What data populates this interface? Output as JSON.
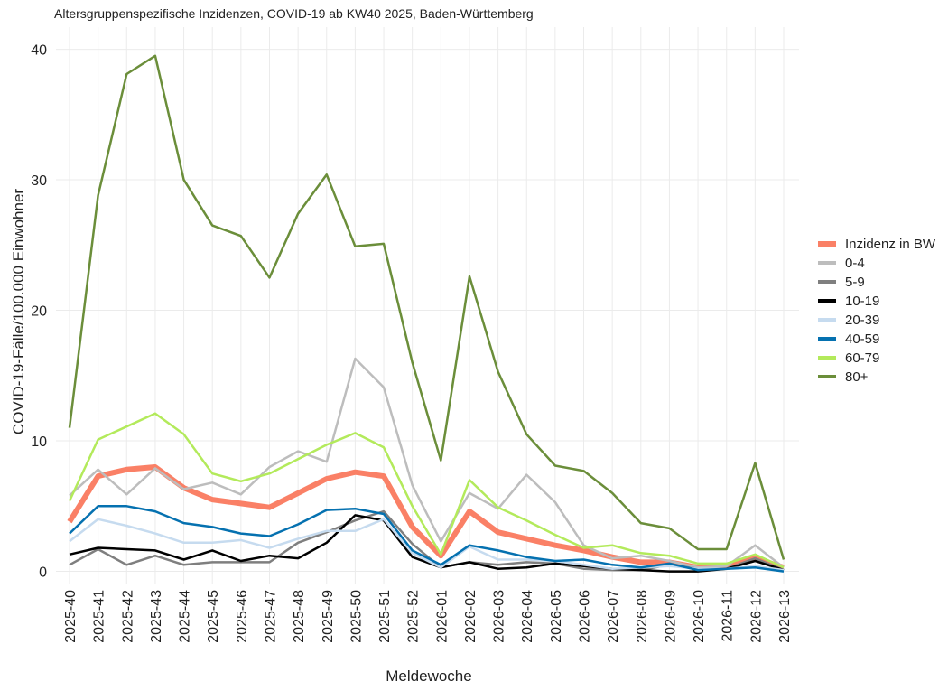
{
  "chart_data": {
    "type": "line",
    "title": "Altersgruppenspezifische Inzidenzen, COVID-19 ab KW40 2025, Baden-Württemberg",
    "x_label": "Meldewoche",
    "y_label": "COVID-19-Fälle/100.000 Einwohner",
    "categories": [
      "2025-40",
      "2025-41",
      "2025-42",
      "2025-43",
      "2025-44",
      "2025-45",
      "2025-46",
      "2025-47",
      "2025-48",
      "2025-49",
      "2025-50",
      "2025-51",
      "2025-52",
      "2026-01",
      "2026-02",
      "2026-03",
      "2026-04",
      "2026-05",
      "2026-06",
      "2026-07",
      "2026-08",
      "2026-09",
      "2026-10",
      "2026-11",
      "2026-12",
      "2026-13"
    ],
    "ylim": [
      -1,
      41.7
    ],
    "yticks": [
      0,
      10,
      20,
      30,
      40
    ],
    "grid": true,
    "legend": "right",
    "series": [
      {
        "name": "Inzidenz in BW",
        "color": "#fa8066",
        "values": [
          3.8,
          7.3,
          7.8,
          8.0,
          6.4,
          5.5,
          5.2,
          4.9,
          6.0,
          7.1,
          7.6,
          7.3,
          3.4,
          1.2,
          4.6,
          3.0,
          2.5,
          2.0,
          1.6,
          1.1,
          0.7,
          0.7,
          0.3,
          0.4,
          1.0,
          0.3
        ]
      },
      {
        "name": "0-4",
        "color": "#bdbdbd",
        "values": [
          5.8,
          7.8,
          5.9,
          7.9,
          6.3,
          6.8,
          5.9,
          8.0,
          9.2,
          8.4,
          16.3,
          14.1,
          6.6,
          2.3,
          6.0,
          4.8,
          7.4,
          5.3,
          2.0,
          1.0,
          1.2,
          0.8,
          0.3,
          0.4,
          2.0,
          0.3
        ]
      },
      {
        "name": "5-9",
        "color": "#7f7f7f",
        "values": [
          0.5,
          1.7,
          0.5,
          1.2,
          0.5,
          0.7,
          0.7,
          0.7,
          2.2,
          3.0,
          3.9,
          4.6,
          2.1,
          0.3,
          0.7,
          0.5,
          0.7,
          0.6,
          0.2,
          0.1,
          0.1,
          0.5,
          0.2,
          0.2,
          1.0,
          0.1
        ]
      },
      {
        "name": "10-19",
        "color": "#000000",
        "values": [
          1.3,
          1.8,
          1.7,
          1.6,
          0.9,
          1.6,
          0.8,
          1.2,
          1.0,
          2.2,
          4.3,
          3.9,
          1.1,
          0.3,
          0.7,
          0.2,
          0.3,
          0.6,
          0.4,
          0.2,
          0.1,
          0.0,
          0.0,
          0.2,
          0.8,
          0.1
        ]
      },
      {
        "name": "20-39",
        "color": "#c6dbef",
        "values": [
          2.3,
          4.0,
          3.5,
          2.9,
          2.2,
          2.2,
          2.4,
          1.8,
          2.5,
          3.1,
          3.1,
          4.0,
          1.4,
          0.3,
          1.9,
          0.9,
          0.9,
          0.8,
          0.5,
          0.2,
          0.3,
          0.4,
          0.2,
          0.2,
          0.4,
          0.1
        ]
      },
      {
        "name": "40-59",
        "color": "#0571b0",
        "values": [
          2.9,
          5.0,
          5.0,
          4.6,
          3.7,
          3.4,
          2.9,
          2.7,
          3.6,
          4.7,
          4.8,
          4.4,
          1.6,
          0.5,
          2.0,
          1.6,
          1.1,
          0.8,
          0.9,
          0.5,
          0.3,
          0.6,
          0.1,
          0.2,
          0.3,
          0.0
        ]
      },
      {
        "name": "60-79",
        "color": "#b3ea5b",
        "values": [
          5.4,
          10.1,
          11.1,
          12.1,
          10.5,
          7.5,
          6.9,
          7.5,
          8.6,
          9.7,
          10.6,
          9.5,
          5.0,
          1.3,
          7.0,
          4.9,
          3.9,
          2.8,
          1.8,
          2.0,
          1.4,
          1.2,
          0.6,
          0.6,
          1.3,
          0.3
        ]
      },
      {
        "name": "80+",
        "color": "#6b8e3a",
        "values": [
          11.0,
          28.8,
          38.1,
          39.5,
          30.0,
          26.5,
          25.7,
          22.5,
          27.4,
          30.4,
          24.9,
          25.1,
          16.0,
          8.5,
          22.6,
          15.3,
          10.5,
          8.1,
          7.7,
          6.0,
          3.7,
          3.3,
          1.7,
          1.7,
          8.3,
          0.9
        ]
      }
    ]
  }
}
